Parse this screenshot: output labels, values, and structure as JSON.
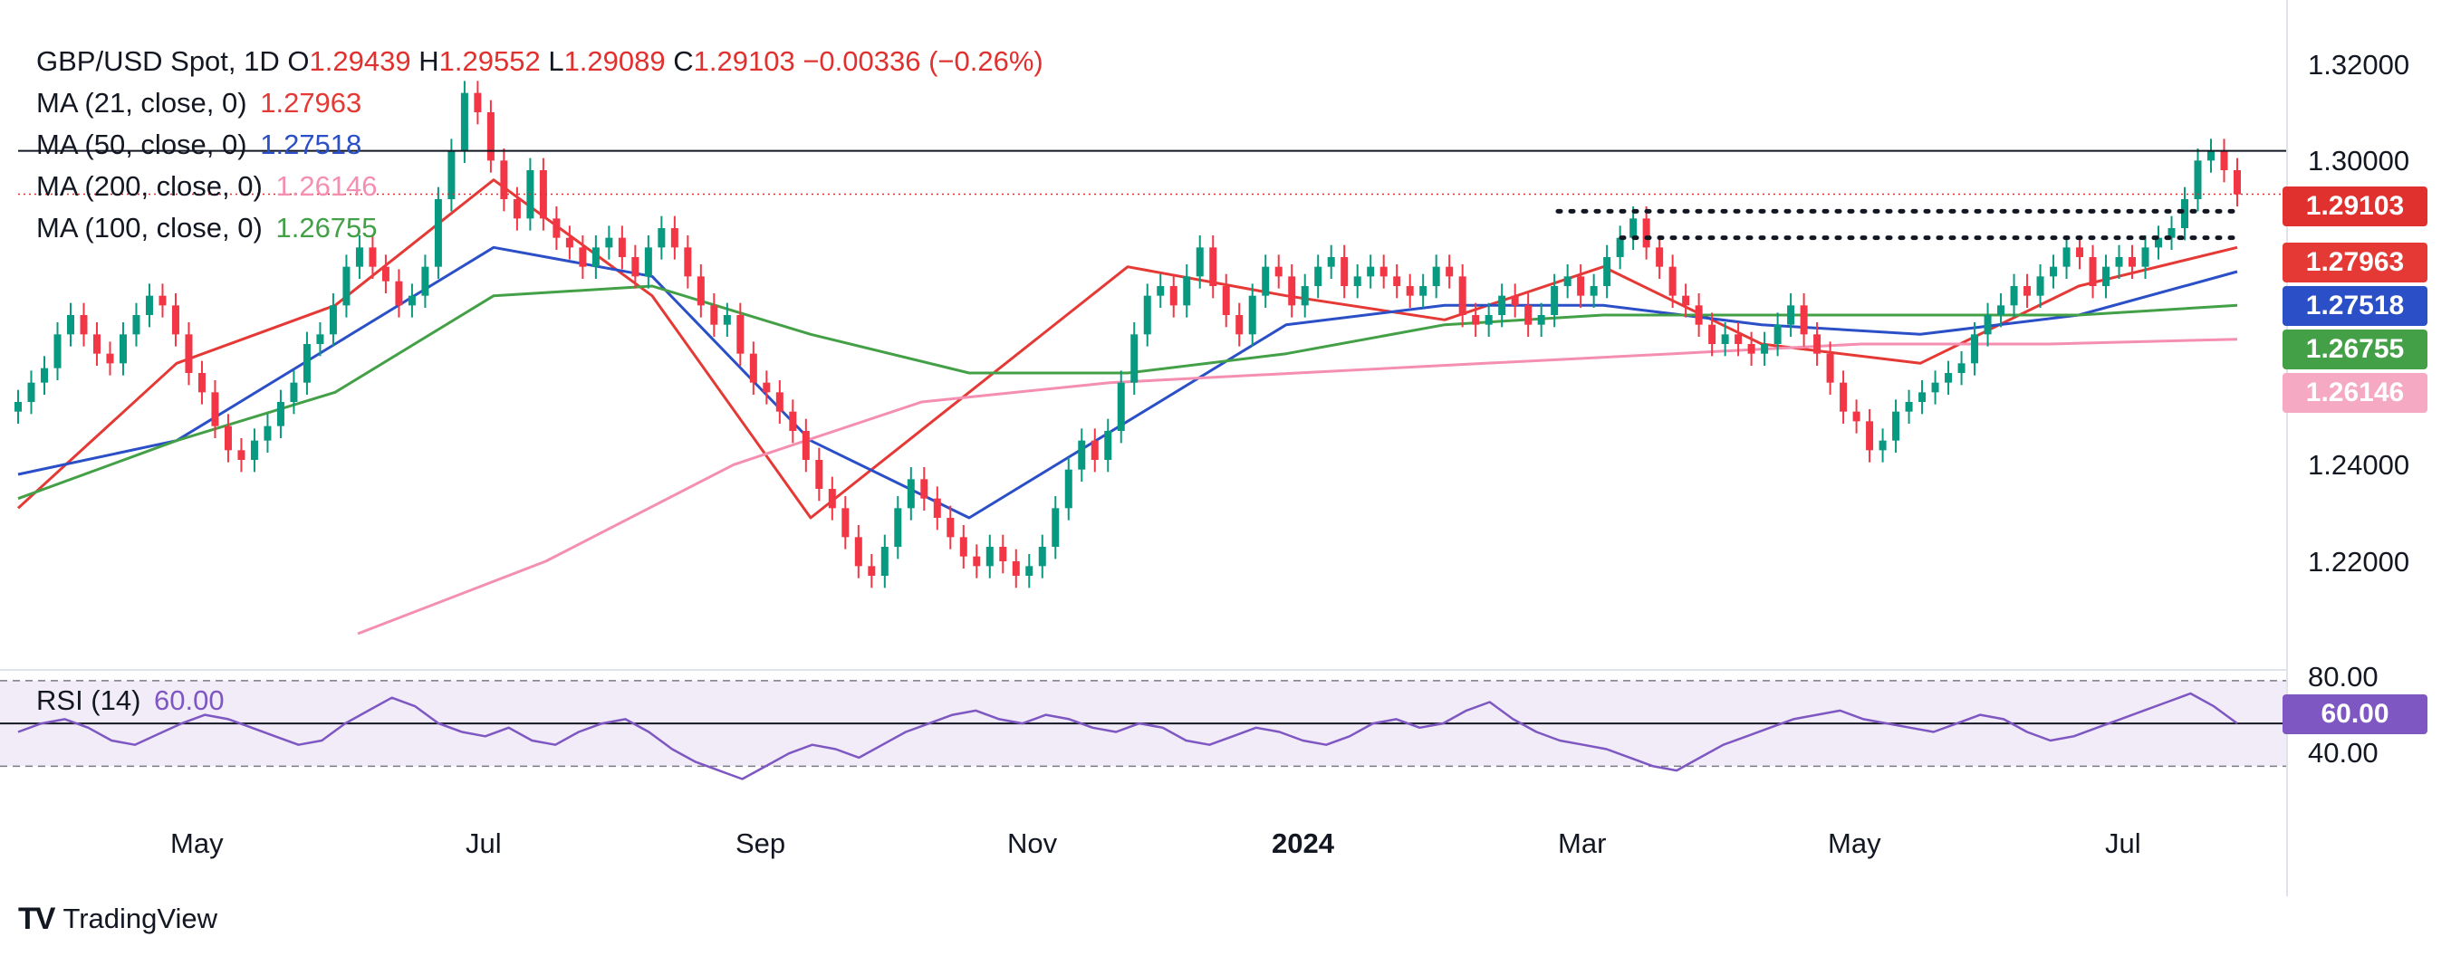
{
  "legend": {
    "symbol": "GBP/USD Spot",
    "interval": "1D",
    "open_label": "O",
    "open": "1.29439",
    "high_label": "H",
    "high": "1.29552",
    "low_label": "L",
    "low": "1.29089",
    "close_label": "C",
    "close": "1.29103",
    "change": "−0.00336 (−0.26%)",
    "ma21_label": "MA (21, close, 0)",
    "ma21_value": "1.27963",
    "ma50_label": "MA (50, close, 0)",
    "ma50_value": "1.27518",
    "ma200_label": "MA (200, close, 0)",
    "ma200_value": "1.26146",
    "ma100_label": "MA (100, close, 0)",
    "ma100_value": "1.26755"
  },
  "rsi": {
    "label": "RSI (14)",
    "value": "60.00",
    "upper_label": "80.00",
    "lower_label": "40.00"
  },
  "badges": {
    "close": "1.29103",
    "ma21": "1.27963",
    "ma50": "1.27518",
    "ma100": "1.26755",
    "ma200": "1.26146",
    "rsi": "60.00"
  },
  "branding": {
    "name": "TradingView"
  },
  "colors": {
    "up": "#089981",
    "down": "#f23645",
    "ma21": "#e53935",
    "ma50": "#2a4fc7",
    "ma100": "#43a047",
    "ma200": "#f48fb1",
    "rsi": "#7e57c2",
    "rsi_band": "#ede7f6",
    "close_badge": "#e0312f",
    "ma21_badge": "#e53935",
    "ma50_badge": "#2a4fc7",
    "ma100_badge": "#43a047",
    "ma200_badge": "#f5a9c2",
    "rsi_badge": "#7e57c2"
  },
  "chart_data": [
    {
      "type": "candlestick",
      "title": "GBP/USD Spot, 1D",
      "x_tick_labels": [
        "May",
        "Jul",
        "Sep",
        "Nov",
        "2024",
        "Mar",
        "May",
        "Jul"
      ],
      "y_tick_labels": [
        "1.32000",
        "1.30000",
        "1.24000",
        "1.22000"
      ],
      "ylim": [
        1.2,
        1.32
      ],
      "horizontal_levels": [
        {
          "value": 1.3,
          "style": "solid"
        },
        {
          "value": 1.2875,
          "style": "dotted",
          "from": "Feb 2024"
        },
        {
          "value": 1.282,
          "style": "dotted",
          "from": "Mar 2024"
        }
      ],
      "last_close": 1.29103,
      "series": [
        {
          "name": "GBP/USD price (approx. daily path)",
          "values": [
            1.248,
            1.252,
            1.255,
            1.262,
            1.266,
            1.262,
            1.258,
            1.256,
            1.262,
            1.266,
            1.27,
            1.268,
            1.262,
            1.254,
            1.25,
            1.243,
            1.238,
            1.236,
            1.24,
            1.243,
            1.248,
            1.252,
            1.26,
            1.262,
            1.268,
            1.276,
            1.28,
            1.276,
            1.273,
            1.268,
            1.27,
            1.276,
            1.29,
            1.3,
            1.312,
            1.308,
            1.298,
            1.29,
            1.286,
            1.296,
            1.286,
            1.282,
            1.28,
            1.276,
            1.28,
            1.282,
            1.278,
            1.274,
            1.28,
            1.284,
            1.28,
            1.274,
            1.268,
            1.264,
            1.266,
            1.258,
            1.252,
            1.25,
            1.246,
            1.242,
            1.236,
            1.23,
            1.226,
            1.22,
            1.214,
            1.212,
            1.218,
            1.226,
            1.232,
            1.228,
            1.224,
            1.22,
            1.216,
            1.214,
            1.218,
            1.215,
            1.212,
            1.214,
            1.218,
            1.226,
            1.234,
            1.24,
            1.236,
            1.242,
            1.252,
            1.262,
            1.27,
            1.272,
            1.268,
            1.274,
            1.28,
            1.272,
            1.266,
            1.262,
            1.27,
            1.276,
            1.274,
            1.268,
            1.272,
            1.276,
            1.278,
            1.272,
            1.274,
            1.276,
            1.274,
            1.272,
            1.27,
            1.272,
            1.276,
            1.274,
            1.266,
            1.264,
            1.266,
            1.27,
            1.268,
            1.264,
            1.266,
            1.272,
            1.274,
            1.27,
            1.272,
            1.278,
            1.282,
            1.286,
            1.28,
            1.276,
            1.27,
            1.268,
            1.264,
            1.26,
            1.262,
            1.26,
            1.258,
            1.26,
            1.264,
            1.268,
            1.262,
            1.258,
            1.252,
            1.246,
            1.244,
            1.238,
            1.24,
            1.246,
            1.248,
            1.25,
            1.252,
            1.254,
            1.256,
            1.262,
            1.266,
            1.268,
            1.272,
            1.27,
            1.274,
            1.276,
            1.28,
            1.278,
            1.272,
            1.276,
            1.278,
            1.276,
            1.28,
            1.282,
            1.284,
            1.29,
            1.298,
            1.3,
            1.296,
            1.291
          ]
        },
        {
          "name": "MA 21",
          "values": [
            1.226,
            1.256,
            1.268,
            1.294,
            1.27,
            1.224,
            1.25,
            1.276,
            1.27,
            1.265,
            1.276,
            1.26,
            1.256,
            1.272,
            1.28
          ]
        },
        {
          "name": "MA 50",
          "values": [
            1.233,
            1.24,
            1.26,
            1.28,
            1.274,
            1.24,
            1.224,
            1.244,
            1.264,
            1.268,
            1.268,
            1.264,
            1.262,
            1.266,
            1.275
          ]
        },
        {
          "name": "MA 100",
          "values": [
            1.228,
            1.24,
            1.25,
            1.27,
            1.272,
            1.262,
            1.254,
            1.254,
            1.258,
            1.264,
            1.266,
            1.266,
            1.266,
            1.266,
            1.268
          ]
        },
        {
          "name": "MA 200",
          "values": [
            1.2,
            1.215,
            1.235,
            1.248,
            1.252,
            1.254,
            1.256,
            1.258,
            1.26,
            1.26,
            1.261
          ]
        }
      ]
    },
    {
      "type": "line",
      "title": "RSI (14)",
      "ylim": [
        30,
        85
      ],
      "y_tick_labels": [
        "80.00",
        "40.00"
      ],
      "reference_lines": [
        80,
        60,
        40
      ],
      "series": [
        {
          "name": "RSI (14)",
          "values": [
            56,
            60,
            62,
            58,
            52,
            50,
            55,
            60,
            64,
            62,
            58,
            54,
            50,
            52,
            60,
            66,
            72,
            68,
            60,
            56,
            54,
            58,
            52,
            50,
            56,
            60,
            62,
            56,
            48,
            42,
            38,
            34,
            40,
            46,
            50,
            48,
            44,
            50,
            56,
            60,
            64,
            66,
            62,
            60,
            64,
            62,
            58,
            56,
            60,
            58,
            52,
            50,
            54,
            58,
            56,
            52,
            50,
            54,
            60,
            62,
            58,
            60,
            66,
            70,
            62,
            56,
            52,
            50,
            48,
            44,
            40,
            38,
            44,
            50,
            54,
            58,
            62,
            64,
            66,
            62,
            60,
            58,
            56,
            60,
            64,
            62,
            56,
            52,
            54,
            58,
            62,
            66,
            70,
            74,
            68,
            60
          ]
        }
      ]
    }
  ]
}
